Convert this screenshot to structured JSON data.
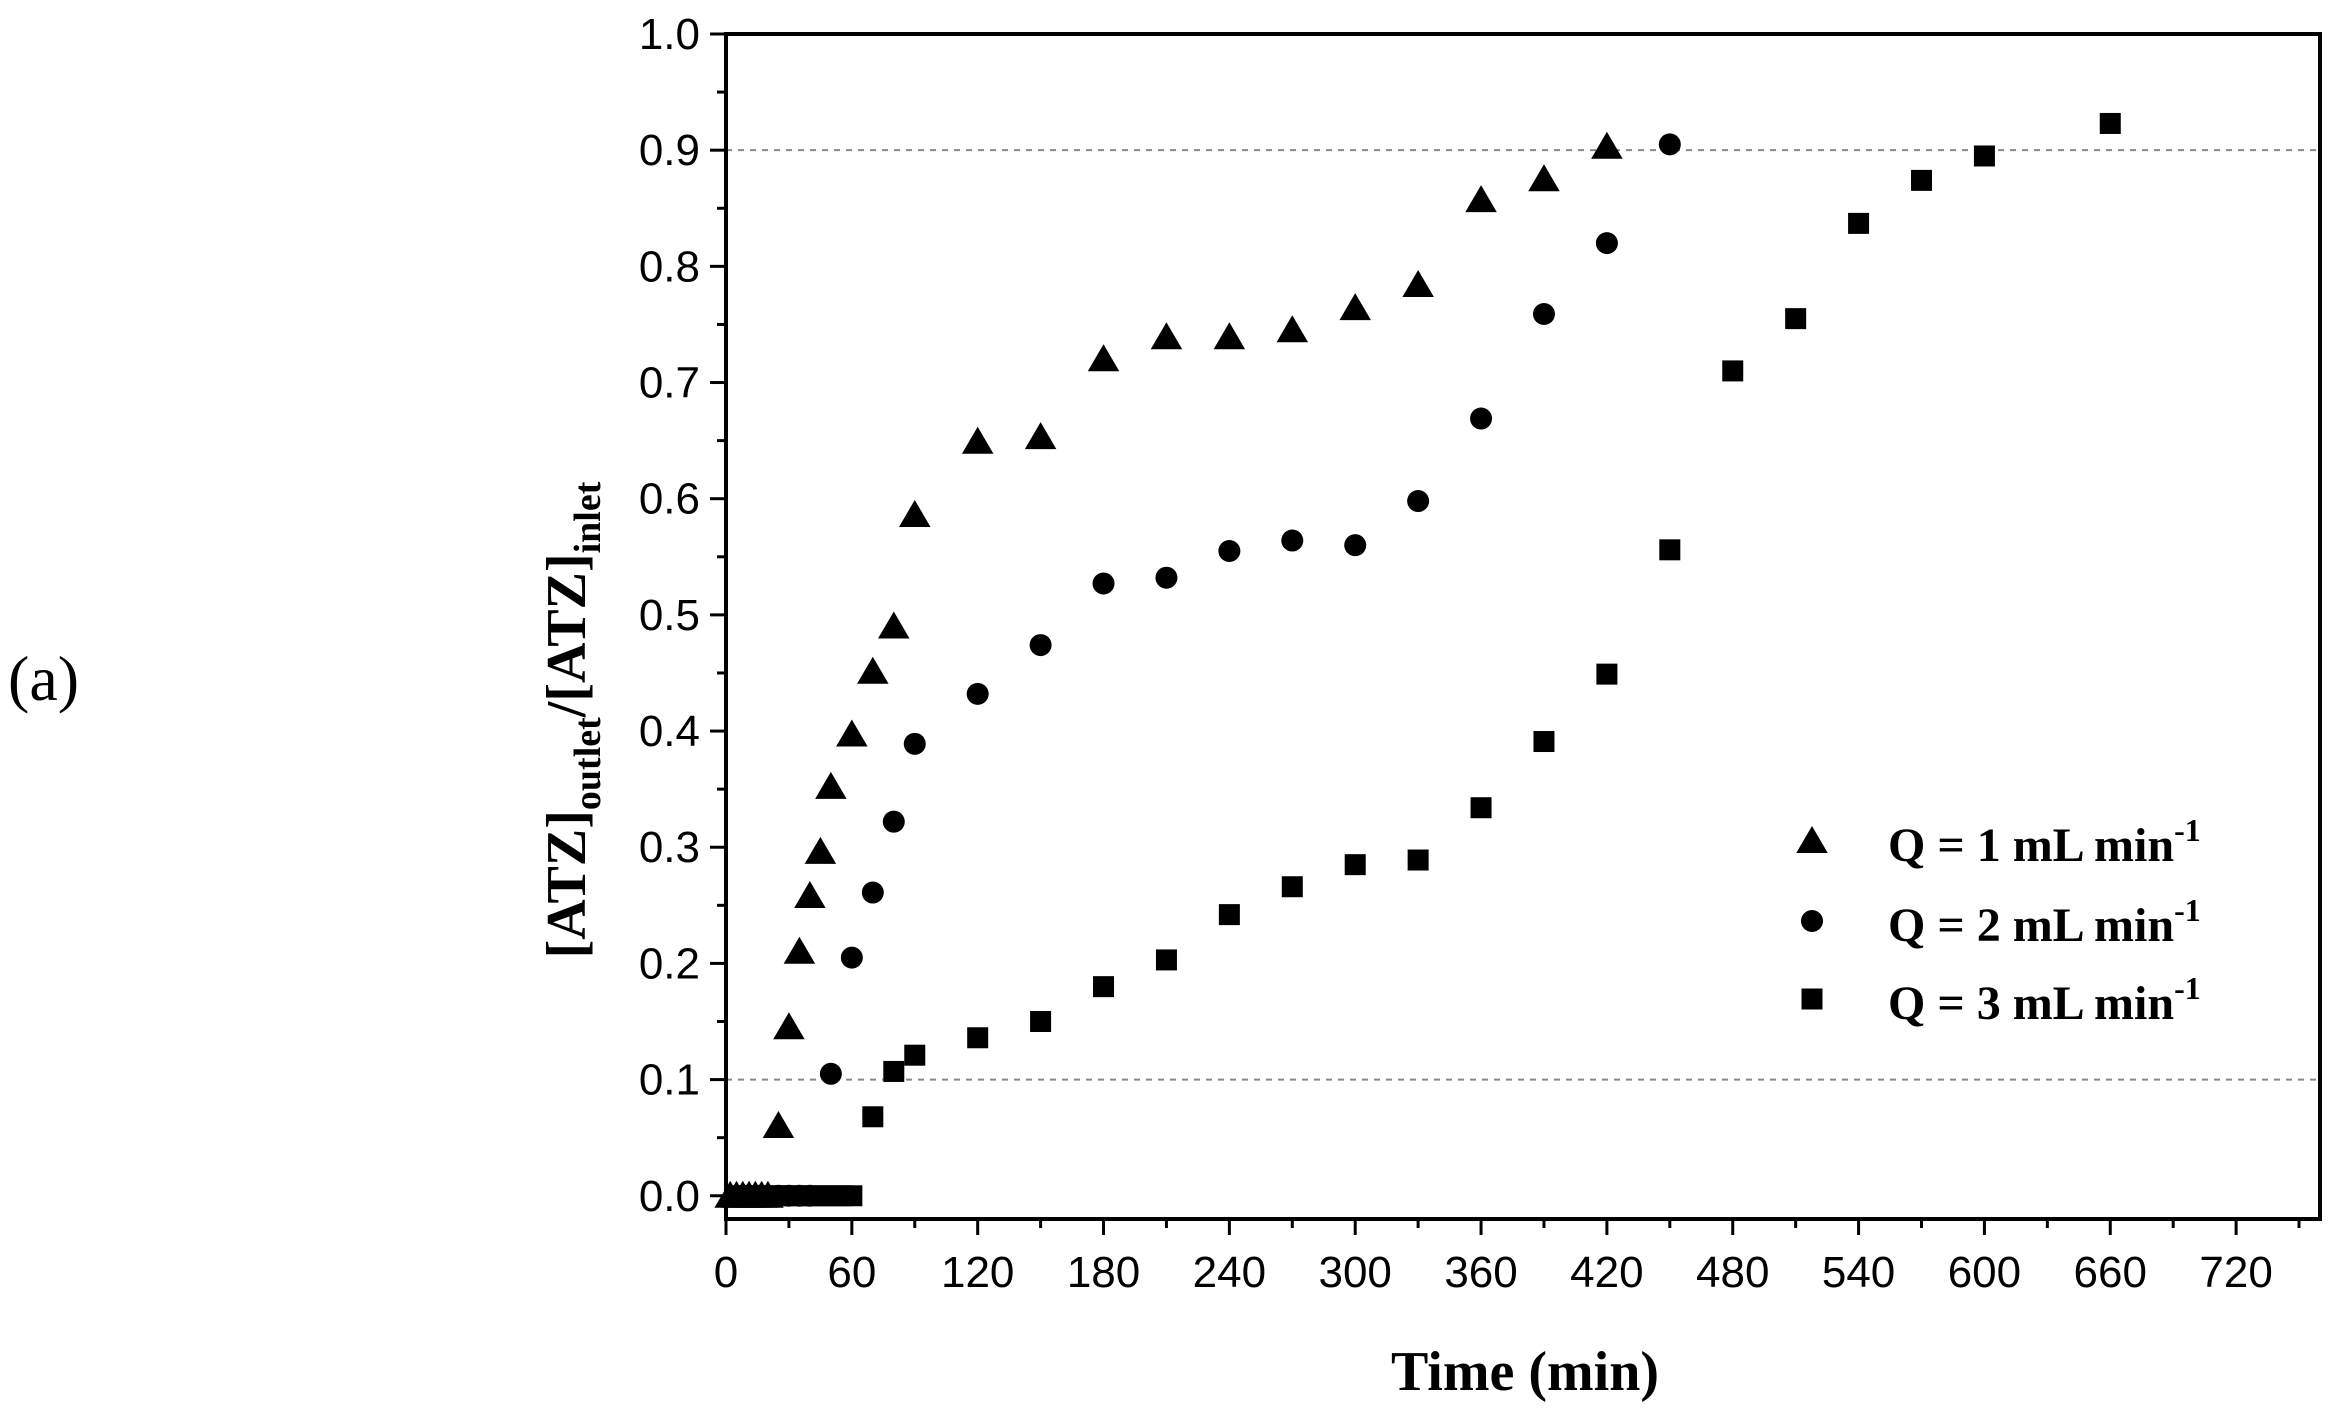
{
  "panel_label": "(a)",
  "chart_data": {
    "type": "scatter",
    "title": "",
    "xlabel": "Time (min)",
    "ylabel": {
      "parts": [
        "[ATZ]",
        "outlet",
        "/[ATZ]",
        "inlet"
      ]
    },
    "xlim": [
      0,
      760
    ],
    "ylim": [
      -0.02,
      1.0
    ],
    "xticks": [
      0,
      60,
      120,
      180,
      240,
      300,
      360,
      420,
      480,
      540,
      600,
      660,
      720
    ],
    "yticks": [
      0.0,
      0.1,
      0.2,
      0.3,
      0.4,
      0.5,
      0.6,
      0.7,
      0.8,
      0.9,
      1.0
    ],
    "xtick_labels": [
      "0",
      "60",
      "120",
      "180",
      "240",
      "300",
      "360",
      "420",
      "480",
      "540",
      "600",
      "660",
      "720"
    ],
    "ytick_labels": [
      "0.0",
      "0.1",
      "0.2",
      "0.3",
      "0.4",
      "0.5",
      "0.6",
      "0.7",
      "0.8",
      "0.9",
      "1.0"
    ],
    "reference_lines": [
      0.1,
      0.9
    ],
    "legend_position": "right-middle",
    "series": [
      {
        "name": "Q = 1 mL min-1",
        "label": "Q = 1 mL min",
        "superscript": "-1",
        "marker": "triangle",
        "color": "#000000",
        "x": [
          2,
          5,
          8,
          11,
          14,
          17,
          20,
          25,
          30,
          35,
          40,
          45,
          50,
          60,
          70,
          80,
          90,
          120,
          150,
          180,
          210,
          240,
          270,
          300,
          330,
          360,
          390,
          420
        ],
        "y": [
          0,
          0,
          0,
          0,
          0,
          0,
          0,
          0.06,
          0.145,
          0.21,
          0.258,
          0.296,
          0.352,
          0.397,
          0.451,
          0.49,
          0.586,
          0.649,
          0.653,
          0.72,
          0.739,
          0.739,
          0.745,
          0.764,
          0.784,
          0.857,
          0.875,
          0.903
        ]
      },
      {
        "name": "Q = 2 mL min-1",
        "label": "Q = 2 mL min",
        "superscript": "-1",
        "marker": "circle",
        "color": "#000000",
        "x": [
          5,
          10,
          15,
          20,
          25,
          30,
          35,
          40,
          50,
          60,
          70,
          80,
          90,
          120,
          150,
          180,
          210,
          240,
          270,
          300,
          330,
          360,
          390,
          420,
          450
        ],
        "y": [
          0,
          0,
          0,
          0,
          0,
          0,
          0,
          0,
          0.105,
          0.205,
          0.261,
          0.322,
          0.389,
          0.432,
          0.474,
          0.527,
          0.532,
          0.555,
          0.564,
          0.56,
          0.598,
          0.669,
          0.759,
          0.82,
          0.905
        ]
      },
      {
        "name": "Q = 3 mL min-1",
        "label": "Q = 3 mL min",
        "superscript": "-1",
        "marker": "square",
        "color": "#000000",
        "x": [
          5,
          10,
          15,
          20,
          25,
          30,
          35,
          40,
          45,
          50,
          55,
          60,
          70,
          80,
          90,
          120,
          150,
          180,
          210,
          240,
          270,
          300,
          330,
          360,
          390,
          420,
          450,
          480,
          510,
          540,
          570,
          600,
          660
        ],
        "y": [
          0,
          0,
          0,
          0,
          0,
          0,
          0,
          0,
          0,
          0,
          0,
          0,
          0.068,
          0.107,
          0.121,
          0.136,
          0.15,
          0.18,
          0.203,
          0.242,
          0.266,
          0.285,
          0.289,
          0.334,
          0.391,
          0.449,
          0.556,
          0.71,
          0.755,
          0.837,
          0.874,
          0.895,
          0.923
        ]
      }
    ]
  }
}
